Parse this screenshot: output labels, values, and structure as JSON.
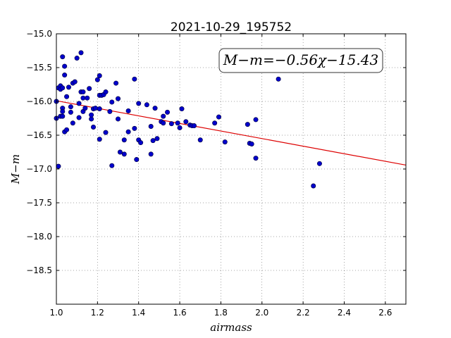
{
  "chart_data": {
    "type": "scatter",
    "title": "2021-10-29_195752",
    "xlabel": "airmass",
    "ylabel": "M−m",
    "xlim": [
      1.0,
      2.7
    ],
    "ylim": [
      -19.0,
      -15.0
    ],
    "y_inverted": true,
    "grid": true,
    "x_ticks": [
      "1.0",
      "1.2",
      "1.4",
      "1.6",
      "1.8",
      "2.0",
      "2.2",
      "2.4",
      "2.6"
    ],
    "y_ticks": [
      "−15.0",
      "−15.5",
      "−16.0",
      "−16.5",
      "−17.0",
      "−17.5",
      "−18.0",
      "−18.5"
    ],
    "annotation": "M−m=−0.56χ−15.43",
    "fit": {
      "slope": -0.56,
      "intercept": -15.43,
      "color": "#dd0000"
    },
    "point_color": "#0000cc",
    "points": [
      [
        1.0,
        -16.0
      ],
      [
        1.0,
        -16.25
      ],
      [
        1.01,
        -16.96
      ],
      [
        1.01,
        -15.8
      ],
      [
        1.02,
        -15.77
      ],
      [
        1.02,
        -15.82
      ],
      [
        1.02,
        -16.22
      ],
      [
        1.03,
        -15.34
      ],
      [
        1.03,
        -16.1
      ],
      [
        1.03,
        -16.15
      ],
      [
        1.03,
        -16.22
      ],
      [
        1.03,
        -15.8
      ],
      [
        1.04,
        -15.61
      ],
      [
        1.04,
        -16.45
      ],
      [
        1.04,
        -15.48
      ],
      [
        1.05,
        -16.42
      ],
      [
        1.05,
        -15.93
      ],
      [
        1.06,
        -15.79
      ],
      [
        1.07,
        -16.16
      ],
      [
        1.07,
        -16.08
      ],
      [
        1.08,
        -15.73
      ],
      [
        1.08,
        -16.32
      ],
      [
        1.09,
        -15.71
      ],
      [
        1.1,
        -15.36
      ],
      [
        1.11,
        -16.24
      ],
      [
        1.11,
        -16.03
      ],
      [
        1.12,
        -15.86
      ],
      [
        1.12,
        -15.28
      ],
      [
        1.13,
        -15.86
      ],
      [
        1.13,
        -15.95
      ],
      [
        1.13,
        -16.15
      ],
      [
        1.14,
        -16.1
      ],
      [
        1.15,
        -15.95
      ],
      [
        1.16,
        -15.81
      ],
      [
        1.17,
        -16.26
      ],
      [
        1.17,
        -16.2
      ],
      [
        1.18,
        -16.11
      ],
      [
        1.18,
        -16.38
      ],
      [
        1.19,
        -16.1
      ],
      [
        1.2,
        -15.68
      ],
      [
        1.21,
        -15.62
      ],
      [
        1.21,
        -15.91
      ],
      [
        1.21,
        -16.11
      ],
      [
        1.21,
        -16.56
      ],
      [
        1.22,
        -15.91
      ],
      [
        1.23,
        -15.9
      ],
      [
        1.24,
        -16.46
      ],
      [
        1.24,
        -15.86
      ],
      [
        1.26,
        -16.15
      ],
      [
        1.27,
        -16.01
      ],
      [
        1.27,
        -16.95
      ],
      [
        1.29,
        -15.73
      ],
      [
        1.3,
        -15.96
      ],
      [
        1.3,
        -16.26
      ],
      [
        1.31,
        -16.75
      ],
      [
        1.33,
        -16.57
      ],
      [
        1.33,
        -16.78
      ],
      [
        1.35,
        -16.45
      ],
      [
        1.35,
        -16.14
      ],
      [
        1.38,
        -15.67
      ],
      [
        1.38,
        -16.4
      ],
      [
        1.39,
        -16.86
      ],
      [
        1.4,
        -16.03
      ],
      [
        1.4,
        -16.57
      ],
      [
        1.41,
        -16.61
      ],
      [
        1.44,
        -16.05
      ],
      [
        1.46,
        -16.37
      ],
      [
        1.46,
        -16.78
      ],
      [
        1.47,
        -16.58
      ],
      [
        1.48,
        -16.1
      ],
      [
        1.49,
        -16.55
      ],
      [
        1.51,
        -16.3
      ],
      [
        1.52,
        -16.22
      ],
      [
        1.52,
        -16.32
      ],
      [
        1.54,
        -16.16
      ],
      [
        1.56,
        -16.33
      ],
      [
        1.59,
        -16.32
      ],
      [
        1.6,
        -16.39
      ],
      [
        1.61,
        -16.11
      ],
      [
        1.63,
        -16.3
      ],
      [
        1.65,
        -16.35
      ],
      [
        1.66,
        -16.36
      ],
      [
        1.67,
        -16.36
      ],
      [
        1.7,
        -16.57
      ],
      [
        1.77,
        -16.32
      ],
      [
        1.79,
        -16.23
      ],
      [
        1.82,
        -16.6
      ],
      [
        1.93,
        -16.34
      ],
      [
        1.94,
        -16.62
      ],
      [
        1.95,
        -16.63
      ],
      [
        1.97,
        -16.84
      ],
      [
        1.97,
        -16.27
      ],
      [
        2.08,
        -15.67
      ],
      [
        2.25,
        -17.25
      ],
      [
        2.28,
        -16.92
      ]
    ]
  }
}
